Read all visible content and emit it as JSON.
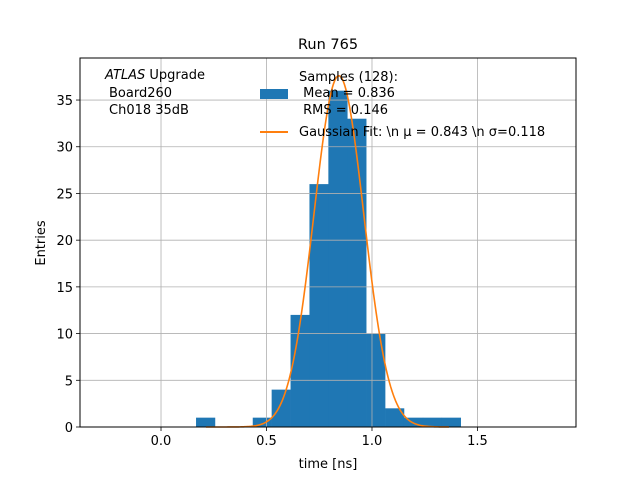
{
  "chart_data": {
    "type": "bar",
    "title": "Run 765",
    "xlabel": "time [ns]",
    "ylabel": "Entries",
    "xlim": [
      -0.384,
      1.967
    ],
    "ylim": [
      0,
      39.5
    ],
    "grid": true,
    "xticks": [
      0.0,
      0.5,
      1.0,
      1.5
    ],
    "xtick_labels": [
      "0.0",
      "0.5",
      "1.0",
      "1.5"
    ],
    "yticks": [
      0,
      5,
      10,
      15,
      20,
      25,
      30,
      35
    ],
    "ytick_labels": [
      "0",
      "5",
      "10",
      "15",
      "20",
      "25",
      "30",
      "35"
    ],
    "histogram": {
      "bin_start": 0.166,
      "bin_width": 0.0896,
      "counts": [
        1,
        0,
        0,
        1,
        4,
        12,
        26,
        36,
        33,
        10,
        2,
        1,
        1,
        1
      ],
      "color": "#1f77b4"
    },
    "fit": {
      "amplitude": 37.6,
      "mu": 0.843,
      "sigma": 0.118,
      "x_range": [
        0.213,
        1.365
      ],
      "color": "#ff7f0e"
    },
    "annotation": [
      "ATLAS",
      " Upgrade",
      "Board260",
      "Ch018 35dB"
    ],
    "legend": {
      "placement": "top-right",
      "entries": [
        {
          "lines": [
            "Samples (128):",
            " Mean = 0.836",
            " RMS = 0.146"
          ]
        },
        {
          "lines": [
            "Gaussian Fit: \\n μ = 0.843 \\n σ=0.118"
          ]
        }
      ]
    }
  }
}
